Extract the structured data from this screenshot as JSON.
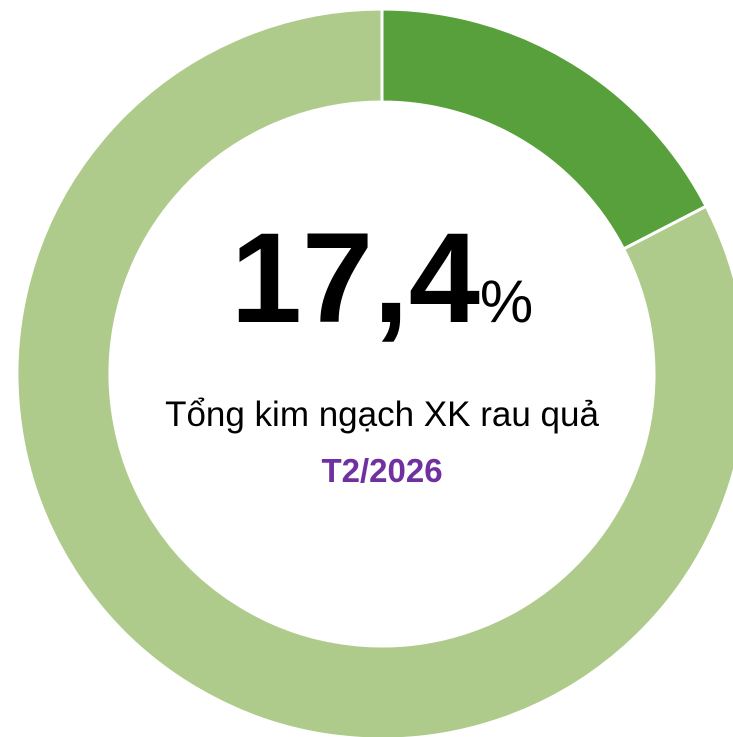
{
  "chart_data": {
    "type": "donut",
    "values": [
      17.4,
      82.6
    ],
    "colors": [
      "#58a03b",
      "#aecb8b"
    ],
    "value_labels": [
      "17,4",
      null
    ],
    "unit": "%",
    "subtitle": "Tổng kim ngạch XK rau quả",
    "period": "T2/2026"
  }
}
